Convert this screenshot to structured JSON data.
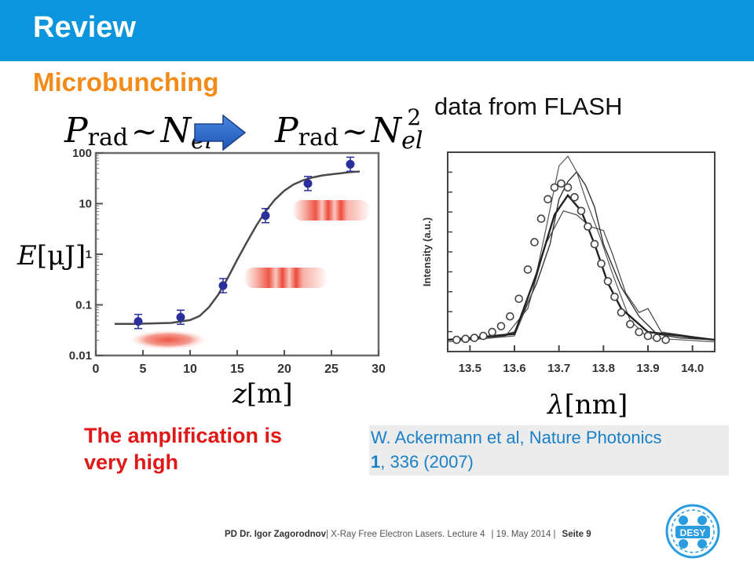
{
  "header": {
    "title": "Review"
  },
  "subtitle": "Microbunching",
  "source_label": "data from FLASH",
  "formula_left": {
    "P": "P",
    "sub": "rad",
    "tilde": "~",
    "N": "N",
    "sub2": "el"
  },
  "formula_right": {
    "P": "P",
    "sub": "rad",
    "tilde": "~",
    "N": "N",
    "sub2": "el",
    "sup": "2"
  },
  "energy_axis_label": {
    "var": "E",
    "unit": "[μJ]"
  },
  "z_axis_label": {
    "var": "z",
    "unit": "[m]"
  },
  "lambda_axis_label": {
    "var": "λ",
    "unit": "[nm]"
  },
  "conclusion": {
    "line1": "The amplification is",
    "line2": "very high"
  },
  "citation": {
    "line1": "W. Ackermann et al, Nature Photonics",
    "volume": "1",
    "rest": ", 336 (2007)"
  },
  "footer": {
    "author": "PD Dr. Igor Zagorodnov",
    "course": "| X-Ray Free Electron Lasers. Lecture 4",
    "date": "| 19. May 2014 |",
    "page": "Seite 9"
  },
  "logo_text": "DESY",
  "colors": {
    "header": "#0b95dc",
    "subtitle": "#f28b1a",
    "conclusion": "#e01818",
    "citation": "#1a80c8",
    "points": "#2b2f9a"
  },
  "chart_data": [
    {
      "type": "scatter",
      "xlim": [
        0,
        30
      ],
      "ylim": [
        0.01,
        100
      ],
      "yscale": "log",
      "x_ticks": [
        "0",
        "5",
        "10",
        "15",
        "20",
        "25",
        "30"
      ],
      "y_ticks": [
        "0.01",
        "0.1",
        "1",
        "10",
        "100"
      ],
      "series": [
        {
          "x": [
            4.5,
            9,
            13.5,
            18,
            22.5,
            27
          ],
          "y": [
            0.047,
            0.057,
            0.24,
            5.8,
            25,
            60
          ]
        }
      ],
      "fit_curve": {
        "x": [
          2,
          4,
          6,
          8,
          10,
          11,
          12,
          13,
          14,
          15,
          16,
          17,
          18,
          19,
          20,
          21,
          22,
          23,
          24,
          25,
          26,
          27,
          28
        ],
        "y": [
          0.042,
          0.042,
          0.043,
          0.044,
          0.05,
          0.06,
          0.09,
          0.16,
          0.34,
          0.78,
          1.7,
          3.6,
          7.0,
          12,
          18,
          24,
          29,
          33,
          36,
          38,
          40,
          42,
          43
        ]
      }
    },
    {
      "type": "line",
      "xlim": [
        13.45,
        14.05
      ],
      "x_ticks": [
        "13.5",
        "13.6",
        "13.7",
        "13.8",
        "13.9",
        "14.0"
      ],
      "ylabel": "Intensity (a.u.)",
      "series": [
        {
          "x": [
            13.45,
            13.55,
            13.6,
            13.65,
            13.68,
            13.7,
            13.72,
            13.74,
            13.76,
            13.78,
            13.8,
            13.84,
            13.88,
            13.92,
            13.97,
            14.05
          ],
          "y": [
            0.06,
            0.07,
            0.1,
            0.35,
            0.55,
            0.78,
            0.87,
            0.92,
            0.85,
            0.74,
            0.55,
            0.33,
            0.18,
            0.09,
            0.07,
            0.06
          ]
        },
        {
          "x": [
            13.45,
            13.6,
            13.64,
            13.67,
            13.7,
            13.72,
            13.74,
            13.76,
            13.79,
            13.82,
            13.86,
            13.9,
            14.05
          ],
          "y": [
            0.05,
            0.08,
            0.3,
            0.62,
            0.95,
            1.0,
            0.92,
            0.78,
            0.6,
            0.4,
            0.16,
            0.07,
            0.05
          ]
        },
        {
          "x": [
            13.45,
            13.58,
            13.63,
            13.67,
            13.71,
            13.74,
            13.77,
            13.8,
            13.82,
            13.85,
            13.88,
            13.9,
            13.93,
            14.05
          ],
          "y": [
            0.06,
            0.08,
            0.22,
            0.55,
            0.72,
            0.7,
            0.64,
            0.62,
            0.5,
            0.3,
            0.2,
            0.22,
            0.1,
            0.06
          ]
        },
        {
          "x": [
            13.45,
            13.6,
            13.65,
            13.69,
            13.72,
            13.75,
            13.78,
            13.81,
            13.84,
            13.87,
            13.9,
            14.05
          ],
          "y": [
            0.06,
            0.09,
            0.4,
            0.7,
            0.8,
            0.72,
            0.55,
            0.35,
            0.22,
            0.16,
            0.1,
            0.06
          ]
        }
      ],
      "markers": {
        "x": [
          13.47,
          13.49,
          13.51,
          13.53,
          13.55,
          13.57,
          13.59,
          13.61,
          13.63,
          13.645,
          13.66,
          13.675,
          13.69,
          13.705,
          13.72,
          13.735,
          13.75,
          13.765,
          13.78,
          13.795,
          13.81,
          13.825,
          13.84,
          13.86,
          13.88,
          13.9,
          13.92,
          13.94
        ],
        "y": [
          0.06,
          0.065,
          0.07,
          0.08,
          0.1,
          0.13,
          0.18,
          0.27,
          0.42,
          0.56,
          0.68,
          0.78,
          0.84,
          0.86,
          0.84,
          0.79,
          0.72,
          0.64,
          0.55,
          0.45,
          0.36,
          0.28,
          0.2,
          0.14,
          0.1,
          0.08,
          0.07,
          0.06
        ]
      }
    }
  ]
}
